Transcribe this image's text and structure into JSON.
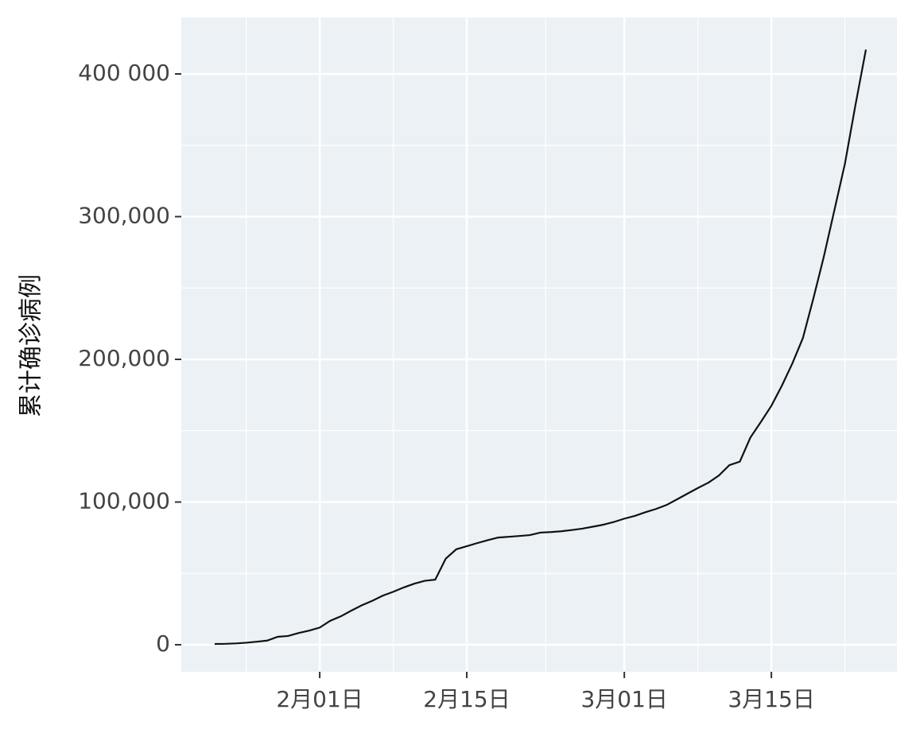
{
  "chart_data": {
    "type": "line",
    "y_label": "累计确诊病例",
    "categories": [
      null,
      null,
      null,
      null,
      null,
      null,
      null,
      null,
      null,
      null,
      "2月01日",
      null,
      null,
      null,
      null,
      null,
      null,
      null,
      null,
      null,
      null,
      null,
      null,
      null,
      "2月15日",
      null,
      null,
      null,
      null,
      null,
      null,
      null,
      null,
      null,
      null,
      null,
      null,
      null,
      null,
      "3月01日",
      null,
      null,
      null,
      null,
      null,
      null,
      null,
      null,
      null,
      null,
      null,
      null,
      null,
      "3月15日",
      null,
      null,
      null,
      null,
      null,
      null,
      null,
      null,
      null
    ],
    "series": [
      {
        "name": null,
        "color": "#111111",
        "values": [
          555,
          654,
          941,
          1434,
          2118,
          2927,
          5578,
          6166,
          8234,
          9927,
          12038,
          16787,
          19887,
          23898,
          27643,
          30802,
          34395,
          37129,
          40159,
          42768,
          44810,
          45600,
          60381,
          66907,
          69051,
          71235,
          73270,
          75152,
          75652,
          76212,
          76841,
          78602,
          78982,
          79546,
          80399,
          81376,
          82736,
          84121,
          86011,
          88371,
          90309,
          92844,
          95124,
          97886,
          101800,
          105836,
          109835,
          113582,
          118582,
          125865,
          128343,
          145193,
          156097,
          167449,
          181546,
          197168,
          214915,
          242713,
          272167,
          304528,
          337000,
          378000,
          417000
        ]
      }
    ],
    "ylim": [
      -18940,
      439550
    ],
    "yticks": [
      0,
      {
        "value": 100000,
        "label": "100,000"
      },
      {
        "value": 200000,
        "label": "200,000"
      },
      {
        "value": 300000,
        "label": "300,000"
      },
      {
        "value": 400000,
        "label": "400 000"
      }
    ],
    "grid": true,
    "panel_color": "#ebf1f5"
  }
}
